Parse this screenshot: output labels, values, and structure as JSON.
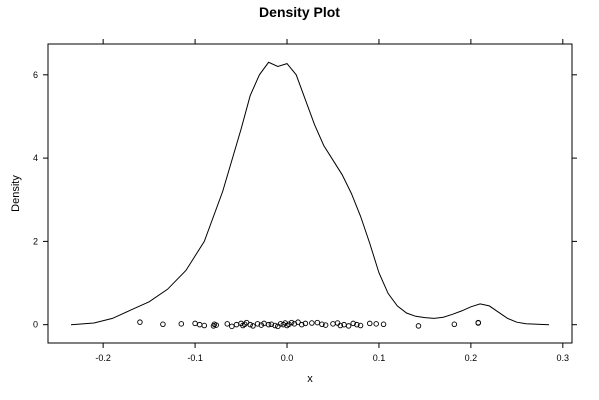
{
  "chart_data": {
    "type": "line",
    "title": "Density Plot",
    "xlabel": "x",
    "ylabel": "Density",
    "xlim": [
      -0.26,
      0.31
    ],
    "ylim": [
      -0.44,
      6.74
    ],
    "x_ticks": [
      -0.2,
      -0.1,
      0.0,
      0.1,
      0.2,
      0.3
    ],
    "x_tick_labels": [
      "-0.2",
      "-0.1",
      "0.0",
      "0.1",
      "0.2",
      "0.3"
    ],
    "y_ticks": [
      0,
      2,
      4,
      6
    ],
    "y_tick_labels": [
      "0",
      "2",
      "4",
      "6"
    ],
    "grid": false,
    "density_curve": {
      "x": [
        -0.235,
        -0.21,
        -0.19,
        -0.17,
        -0.15,
        -0.13,
        -0.11,
        -0.09,
        -0.07,
        -0.05,
        -0.04,
        -0.03,
        -0.02,
        -0.01,
        0.0,
        0.01,
        0.02,
        0.03,
        0.04,
        0.05,
        0.06,
        0.07,
        0.08,
        0.09,
        0.1,
        0.11,
        0.12,
        0.13,
        0.14,
        0.15,
        0.16,
        0.17,
        0.18,
        0.19,
        0.2,
        0.21,
        0.22,
        0.23,
        0.24,
        0.25,
        0.26,
        0.285
      ],
      "y": [
        0.0,
        0.04,
        0.15,
        0.35,
        0.55,
        0.85,
        1.3,
        2.0,
        3.2,
        4.7,
        5.5,
        6.0,
        6.3,
        6.2,
        6.27,
        6.0,
        5.4,
        4.8,
        4.3,
        3.95,
        3.6,
        3.15,
        2.6,
        1.95,
        1.25,
        0.75,
        0.45,
        0.28,
        0.2,
        0.17,
        0.15,
        0.18,
        0.25,
        0.33,
        0.43,
        0.5,
        0.45,
        0.3,
        0.15,
        0.06,
        0.02,
        0.0
      ]
    },
    "rug_points": {
      "x": [
        -0.16,
        -0.135,
        -0.115,
        -0.1,
        -0.095,
        -0.09,
        -0.08,
        -0.079,
        -0.077,
        -0.065,
        -0.06,
        -0.055,
        -0.05,
        -0.048,
        -0.046,
        -0.044,
        -0.04,
        -0.037,
        -0.032,
        -0.028,
        -0.025,
        -0.02,
        -0.017,
        -0.013,
        -0.01,
        -0.007,
        -0.004,
        -0.002,
        0.0,
        0.002,
        0.005,
        0.008,
        0.012,
        0.016,
        0.02,
        0.027,
        0.033,
        0.038,
        0.042,
        0.05,
        0.055,
        0.058,
        0.062,
        0.067,
        0.072,
        0.076,
        0.08,
        0.09,
        0.097,
        0.105,
        0.143,
        0.182,
        0.208,
        0.208
      ],
      "y": [
        0.06,
        0.01,
        0.02,
        0.03,
        0.0,
        -0.02,
        -0.03,
        0.01,
        -0.01,
        0.02,
        -0.04,
        0.0,
        0.03,
        -0.02,
        0.01,
        0.05,
        0.0,
        -0.03,
        0.02,
        -0.01,
        0.03,
        0.0,
        0.01,
        -0.02,
        -0.04,
        0.02,
        0.0,
        0.04,
        -0.02,
        0.01,
        0.05,
        0.02,
        0.06,
        0.0,
        0.03,
        0.04,
        0.05,
        0.01,
        -0.01,
        0.02,
        0.04,
        -0.02,
        0.0,
        -0.03,
        0.03,
        0.0,
        -0.02,
        0.03,
        0.02,
        0.01,
        -0.03,
        0.01,
        0.05,
        0.04
      ]
    }
  }
}
